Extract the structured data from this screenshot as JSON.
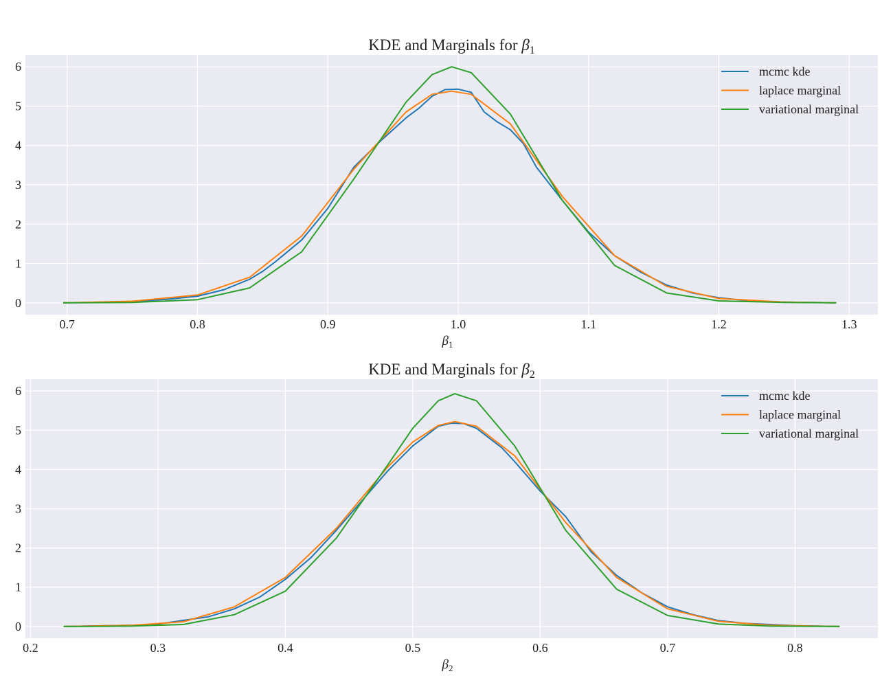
{
  "chart_data": [
    {
      "type": "line",
      "title_prefix": "KDE and Marginals for ",
      "title_symbol": "β",
      "title_sub": "1",
      "xlabel_symbol": "β",
      "xlabel_sub": "1",
      "ylabel": "",
      "xlim": [
        0.668,
        1.322
      ],
      "ylim": [
        -0.3,
        6.3
      ],
      "xticks": [
        0.7,
        0.8,
        0.9,
        1.0,
        1.1,
        1.2,
        1.3
      ],
      "xtick_labels": [
        "0.7",
        "0.8",
        "0.9",
        "1.0",
        "1.1",
        "1.2",
        "1.3"
      ],
      "yticks": [
        0,
        1,
        2,
        3,
        4,
        5,
        6
      ],
      "ytick_labels": [
        "0",
        "1",
        "2",
        "3",
        "4",
        "5",
        "6"
      ],
      "grid": true,
      "legend_position": "top-right",
      "series": [
        {
          "name": "mcmc kde",
          "color": "#1f77b4",
          "x": [
            0.697,
            0.75,
            0.78,
            0.8,
            0.82,
            0.84,
            0.85,
            0.86,
            0.88,
            0.9,
            0.92,
            0.94,
            0.96,
            0.97,
            0.98,
            0.99,
            1.0,
            1.01,
            1.02,
            1.03,
            1.04,
            1.05,
            1.06,
            1.08,
            1.1,
            1.12,
            1.14,
            1.16,
            1.18,
            1.2,
            1.22,
            1.25,
            1.29
          ],
          "y": [
            0.0,
            0.03,
            0.1,
            0.17,
            0.33,
            0.6,
            0.8,
            1.05,
            1.6,
            2.4,
            3.45,
            4.1,
            4.7,
            4.95,
            5.25,
            5.42,
            5.43,
            5.35,
            4.85,
            4.6,
            4.4,
            4.05,
            3.45,
            2.6,
            1.8,
            1.2,
            0.78,
            0.45,
            0.25,
            0.13,
            0.06,
            0.02,
            0.0
          ]
        },
        {
          "name": "laplace marginal",
          "color": "#ff7f0e",
          "x": [
            0.697,
            0.75,
            0.8,
            0.84,
            0.88,
            0.92,
            0.96,
            0.98,
            0.995,
            1.01,
            1.04,
            1.08,
            1.12,
            1.16,
            1.2,
            1.25,
            1.29
          ],
          "y": [
            0.0,
            0.04,
            0.2,
            0.65,
            1.7,
            3.4,
            4.85,
            5.3,
            5.38,
            5.3,
            4.55,
            2.7,
            1.2,
            0.42,
            0.11,
            0.02,
            0.0
          ]
        },
        {
          "name": "variational marginal",
          "color": "#2ca02c",
          "x": [
            0.697,
            0.75,
            0.8,
            0.84,
            0.88,
            0.92,
            0.96,
            0.98,
            0.995,
            1.01,
            1.04,
            1.08,
            1.12,
            1.16,
            1.2,
            1.25,
            1.29
          ],
          "y": [
            0.0,
            0.01,
            0.08,
            0.38,
            1.3,
            3.15,
            5.1,
            5.8,
            6.0,
            5.85,
            4.8,
            2.6,
            0.95,
            0.25,
            0.05,
            0.01,
            0.0
          ]
        }
      ]
    },
    {
      "type": "line",
      "title_prefix": "KDE and Marginals for ",
      "title_symbol": "β",
      "title_sub": "2",
      "xlabel_symbol": "β",
      "xlabel_sub": "2",
      "ylabel": "",
      "xlim": [
        0.196,
        0.865
      ],
      "ylim": [
        -0.3,
        6.3
      ],
      "xticks": [
        0.2,
        0.3,
        0.4,
        0.5,
        0.6,
        0.7,
        0.8
      ],
      "xtick_labels": [
        "0.2",
        "0.3",
        "0.4",
        "0.5",
        "0.6",
        "0.7",
        "0.8"
      ],
      "yticks": [
        0,
        1,
        2,
        3,
        4,
        5,
        6
      ],
      "ytick_labels": [
        "0",
        "1",
        "2",
        "3",
        "4",
        "5",
        "6"
      ],
      "grid": true,
      "legend_position": "top-right",
      "series": [
        {
          "name": "mcmc kde",
          "color": "#1f77b4",
          "x": [
            0.226,
            0.28,
            0.3,
            0.34,
            0.36,
            0.38,
            0.4,
            0.42,
            0.44,
            0.46,
            0.48,
            0.5,
            0.51,
            0.52,
            0.53,
            0.54,
            0.55,
            0.56,
            0.57,
            0.58,
            0.6,
            0.62,
            0.64,
            0.66,
            0.68,
            0.7,
            0.72,
            0.74,
            0.76,
            0.8,
            0.835
          ],
          "y": [
            0.0,
            0.03,
            0.06,
            0.25,
            0.45,
            0.75,
            1.2,
            1.75,
            2.45,
            3.2,
            3.95,
            4.6,
            4.85,
            5.1,
            5.18,
            5.17,
            5.05,
            4.8,
            4.55,
            4.2,
            3.45,
            2.8,
            1.9,
            1.3,
            0.85,
            0.5,
            0.3,
            0.15,
            0.08,
            0.02,
            0.0
          ]
        },
        {
          "name": "laplace marginal",
          "color": "#ff7f0e",
          "x": [
            0.226,
            0.28,
            0.32,
            0.36,
            0.4,
            0.44,
            0.48,
            0.5,
            0.52,
            0.533,
            0.55,
            0.58,
            0.62,
            0.66,
            0.7,
            0.74,
            0.78,
            0.835
          ],
          "y": [
            0.0,
            0.03,
            0.12,
            0.5,
            1.25,
            2.5,
            4.05,
            4.7,
            5.12,
            5.22,
            5.1,
            4.35,
            2.65,
            1.25,
            0.45,
            0.13,
            0.03,
            0.0
          ]
        },
        {
          "name": "variational marginal",
          "color": "#2ca02c",
          "x": [
            0.226,
            0.28,
            0.32,
            0.36,
            0.4,
            0.44,
            0.48,
            0.5,
            0.52,
            0.533,
            0.55,
            0.58,
            0.62,
            0.66,
            0.7,
            0.74,
            0.78,
            0.835
          ],
          "y": [
            0.0,
            0.01,
            0.05,
            0.3,
            0.9,
            2.25,
            4.1,
            5.05,
            5.75,
            5.93,
            5.75,
            4.6,
            2.45,
            0.95,
            0.28,
            0.06,
            0.01,
            0.0
          ]
        }
      ]
    }
  ]
}
